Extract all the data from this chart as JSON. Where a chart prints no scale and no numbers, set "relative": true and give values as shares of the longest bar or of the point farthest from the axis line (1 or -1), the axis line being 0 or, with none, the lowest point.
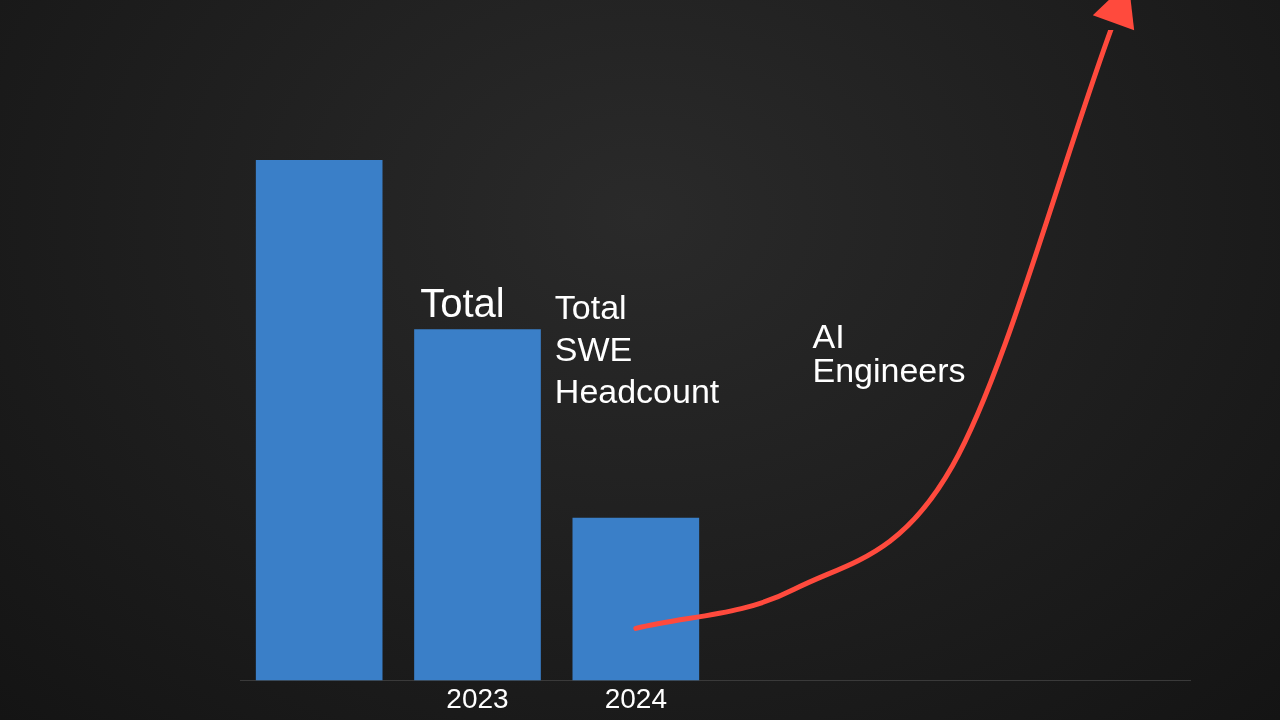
{
  "chart_data": {
    "type": "bar",
    "relative": true,
    "categories": [
      null,
      "2023",
      "2024",
      null,
      null,
      null
    ],
    "series": [
      {
        "name": "Total SWE Headcount",
        "color": "#3a7fc8",
        "values": [
          0.8,
          0.54,
          0.25,
          null,
          null,
          null
        ]
      },
      {
        "type": "line",
        "name": "AI Engineers",
        "color": "#ff4a3d",
        "values": [
          null,
          null,
          0.08,
          0.14,
          0.33,
          1.0
        ]
      }
    ],
    "annotations": [
      "Total"
    ],
    "legend": false,
    "marker": "none",
    "line_style": "solid",
    "tick_labels": "x"
  }
}
